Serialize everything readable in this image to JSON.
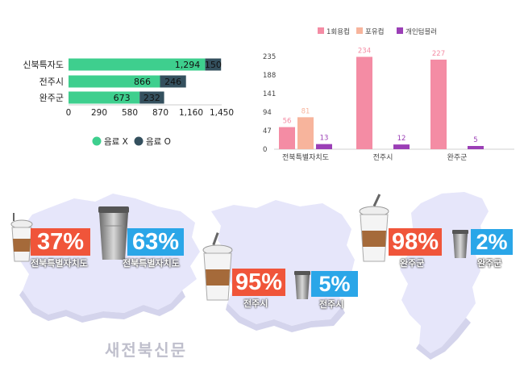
{
  "chart_data": [
    {
      "type": "bar",
      "orientation": "horizontal",
      "stacked": true,
      "categories": [
        "신북특자도",
        "전주시",
        "완주군"
      ],
      "series": [
        {
          "name": "음료 X",
          "values": [
            1294,
            866,
            673
          ],
          "color": "#3ecf8e"
        },
        {
          "name": "음료 O",
          "values": [
            150,
            246,
            232
          ],
          "color": "#34505e"
        }
      ],
      "xticks": [
        "0",
        "290",
        "580",
        "870",
        "1,160",
        "1,450"
      ],
      "xlim": [
        0,
        1450
      ],
      "value_labels": [
        [
          "1,294",
          "866",
          "673"
        ],
        [
          "150",
          "246",
          "232"
        ]
      ],
      "legend_position": "bottom"
    },
    {
      "type": "bar",
      "categories": [
        "전북특별자치도",
        "전주시",
        "완주군"
      ],
      "series": [
        {
          "name": "1회용컵",
          "values": [
            56,
            234,
            227
          ],
          "color": "#f48ca4"
        },
        {
          "name": "포유컵",
          "values": [
            81,
            0,
            0
          ],
          "color": "#f7b49c"
        },
        {
          "name": "개인텀블러",
          "values": [
            13,
            12,
            5
          ],
          "color": "#9b3fb6"
        }
      ],
      "value_labels": [
        [
          "56",
          "234",
          "227"
        ],
        [
          "81",
          "",
          ""
        ],
        [
          "13",
          "12",
          "5"
        ]
      ],
      "yticks": [
        "235",
        "188",
        "141",
        "94",
        "47",
        "0"
      ],
      "ylim": [
        0,
        235
      ],
      "legend_position": "top"
    }
  ],
  "infographic": {
    "panels": [
      {
        "left_pct": "37%",
        "left_label": "전북특별자치도",
        "right_pct": "63%",
        "right_label": "전북특별자치도"
      },
      {
        "left_pct": "95%",
        "left_label": "전주시",
        "right_pct": "5%",
        "right_label": "전주시"
      },
      {
        "left_pct": "98%",
        "left_label": "완주군",
        "right_pct": "2%",
        "right_label": "완주군"
      }
    ],
    "colors": {
      "left_badge": "#f0553a",
      "right_badge": "#2aa6e8",
      "map": "#e6e6fa"
    }
  },
  "footer": "새전북신문"
}
